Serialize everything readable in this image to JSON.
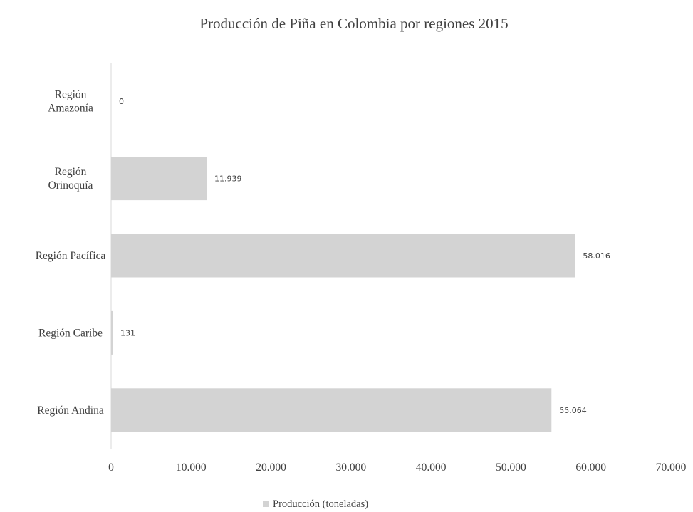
{
  "chart_data": {
    "type": "bar",
    "orientation": "horizontal",
    "title": "Producción de Piña en Colombia por regiones 2015",
    "categories": [
      "Región Andina",
      "Región Caribe",
      "Región Pacífica",
      "Región Orinoquía",
      "Región Amazonía"
    ],
    "category_display": [
      [
        "Región Andina"
      ],
      [
        "Región Caribe"
      ],
      [
        "Región Pacífica"
      ],
      [
        "Región",
        "Orinoquía"
      ],
      [
        "Región",
        "Amazonía"
      ]
    ],
    "series": [
      {
        "name": "Producción (toneladas)",
        "values": [
          55064,
          131,
          58016,
          11939,
          0
        ],
        "labels": [
          "55.064",
          "131",
          "58.016",
          "11.939",
          "0"
        ]
      }
    ],
    "xlim": [
      0,
      70000
    ],
    "x_ticks": [
      0,
      10000,
      20000,
      30000,
      40000,
      50000,
      60000,
      70000
    ],
    "x_tick_labels": [
      "0",
      "10.000",
      "20.000",
      "30.000",
      "40.000",
      "50.000",
      "60.000",
      "70.000"
    ],
    "grid": false,
    "legend": "bottom",
    "colors": {
      "bar": "#d3d3d3",
      "axis": "#d9d9d9",
      "text": "#404040"
    }
  }
}
